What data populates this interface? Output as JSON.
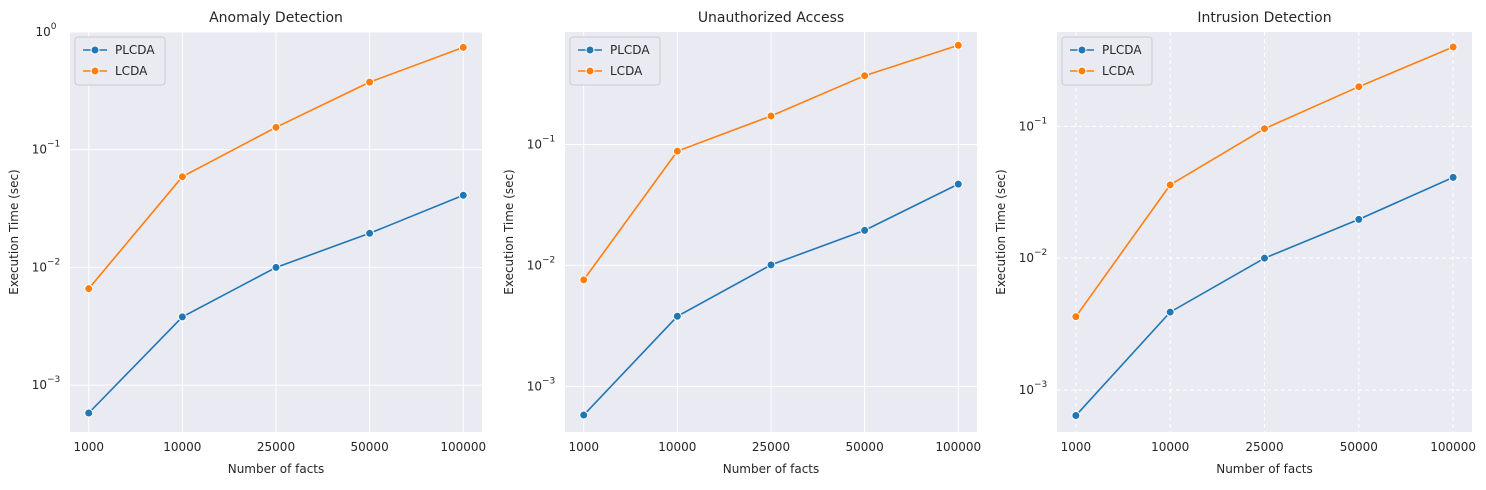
{
  "figure": {
    "colors": {
      "plot_background": "#eaeaf2",
      "grid": "#ffffff",
      "plcda": "#1f77b4",
      "lcda": "#ff7f0e",
      "text": "#262626",
      "legend_background": "#eaeaf2",
      "legend_border": "#cccccc"
    }
  },
  "chart_data": [
    {
      "type": "line",
      "title": "Anomaly Detection",
      "xlabel": "Number of facts",
      "ylabel": "Execution Time (sec)",
      "categories": [
        "1000",
        "10000",
        "25000",
        "50000",
        "100000"
      ],
      "yscale": "log",
      "ylim": [
        0.0004,
        1.0
      ],
      "yticks": [
        0.001,
        0.01,
        0.1,
        1
      ],
      "ytick_labels": [
        {
          "base": "10",
          "exp": "−3"
        },
        {
          "base": "10",
          "exp": "−2"
        },
        {
          "base": "10",
          "exp": "−1"
        },
        {
          "base": "10",
          "exp": "0"
        }
      ],
      "grid": true,
      "grid_style": "solid",
      "legend": "top-left",
      "series": [
        {
          "name": "PLCDA",
          "values": [
            0.00058,
            0.0038,
            0.01,
            0.0195,
            0.041
          ]
        },
        {
          "name": "LCDA",
          "values": [
            0.0066,
            0.059,
            0.155,
            0.375,
            0.74
          ]
        }
      ]
    },
    {
      "type": "line",
      "title": "Unauthorized Access",
      "xlabel": "Number of facts",
      "ylabel": "Execution Time (sec)",
      "categories": [
        "1000",
        "10000",
        "25000",
        "50000",
        "100000"
      ],
      "yscale": "log",
      "ylim": [
        0.00042,
        0.85
      ],
      "yticks": [
        0.001,
        0.01,
        0.1
      ],
      "ytick_labels": [
        {
          "base": "10",
          "exp": "−3"
        },
        {
          "base": "10",
          "exp": "−2"
        },
        {
          "base": "10",
          "exp": "−1"
        }
      ],
      "grid": true,
      "grid_style": "solid",
      "legend": "top-left",
      "series": [
        {
          "name": "PLCDA",
          "values": [
            0.00058,
            0.0038,
            0.0101,
            0.0195,
            0.047
          ]
        },
        {
          "name": "LCDA",
          "values": [
            0.0076,
            0.088,
            0.172,
            0.37,
            0.66
          ]
        }
      ]
    },
    {
      "type": "line",
      "title": "Intrusion Detection",
      "xlabel": "Number of facts",
      "ylabel": "Execution Time (sec)",
      "categories": [
        "1000",
        "10000",
        "25000",
        "50000",
        "100000"
      ],
      "yscale": "log",
      "ylim": [
        0.00048,
        0.52
      ],
      "yticks": [
        0.001,
        0.01,
        0.1
      ],
      "ytick_labels": [
        {
          "base": "10",
          "exp": "−3"
        },
        {
          "base": "10",
          "exp": "−2"
        },
        {
          "base": "10",
          "exp": "−1"
        }
      ],
      "grid": true,
      "grid_style": "dashed",
      "legend": "top-left",
      "series": [
        {
          "name": "PLCDA",
          "values": [
            0.00064,
            0.0039,
            0.01,
            0.0197,
            0.041
          ]
        },
        {
          "name": "LCDA",
          "values": [
            0.0036,
            0.036,
            0.096,
            0.2,
            0.4
          ]
        }
      ]
    }
  ]
}
